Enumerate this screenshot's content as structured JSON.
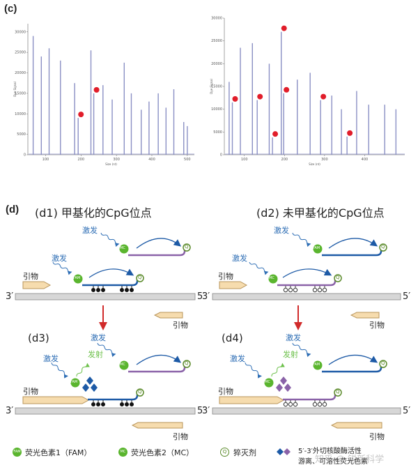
{
  "panel_c_label": "(c)",
  "panel_d_label": "(d)",
  "chart_data": [
    {
      "type": "bar",
      "title": "",
      "xlabel": "Size (nt)",
      "ylabel": "Dye Signal",
      "xlim": [
        50,
        520
      ],
      "ylim": [
        0,
        32000
      ],
      "x_ticks": [
        "100",
        "200",
        "300",
        "400",
        "500"
      ],
      "y_ticks": [
        "0",
        "5000",
        "10000",
        "15000",
        "20000",
        "25000",
        "30000"
      ],
      "peaks": [
        {
          "x": 65,
          "y": 29000
        },
        {
          "x": 88,
          "y": 24000
        },
        {
          "x": 110,
          "y": 26000
        },
        {
          "x": 142,
          "y": 23000
        },
        {
          "x": 182,
          "y": 17500
        },
        {
          "x": 192,
          "y": 9000,
          "marked": true
        },
        {
          "x": 228,
          "y": 25500
        },
        {
          "x": 236,
          "y": 15000,
          "marked": true
        },
        {
          "x": 262,
          "y": 17000
        },
        {
          "x": 288,
          "y": 13500
        },
        {
          "x": 322,
          "y": 22500
        },
        {
          "x": 342,
          "y": 15000
        },
        {
          "x": 370,
          "y": 11000
        },
        {
          "x": 392,
          "y": 13000
        },
        {
          "x": 418,
          "y": 15000
        },
        {
          "x": 440,
          "y": 11500
        },
        {
          "x": 462,
          "y": 16000
        },
        {
          "x": 490,
          "y": 8000
        },
        {
          "x": 500,
          "y": 7000
        }
      ]
    },
    {
      "type": "bar",
      "title": "",
      "xlabel": "Size (nt)",
      "ylabel": "Dye Signal",
      "xlim": [
        50,
        500
      ],
      "ylim": [
        0,
        30000
      ],
      "x_ticks": [
        "100",
        "200",
        "300",
        "400"
      ],
      "y_ticks": [
        "0",
        "5000",
        "10000",
        "15000",
        "20000",
        "25000",
        "30000"
      ],
      "peaks": [
        {
          "x": 62,
          "y": 16000
        },
        {
          "x": 70,
          "y": 11500,
          "marked": true
        },
        {
          "x": 90,
          "y": 23500
        },
        {
          "x": 120,
          "y": 24500
        },
        {
          "x": 132,
          "y": 12000,
          "marked": true
        },
        {
          "x": 162,
          "y": 20000
        },
        {
          "x": 170,
          "y": 3800,
          "marked": true
        },
        {
          "x": 192,
          "y": 27000,
          "marked": true
        },
        {
          "x": 198,
          "y": 13500,
          "marked": true
        },
        {
          "x": 232,
          "y": 16500
        },
        {
          "x": 264,
          "y": 18000
        },
        {
          "x": 290,
          "y": 12000,
          "marked": true
        },
        {
          "x": 318,
          "y": 13000
        },
        {
          "x": 342,
          "y": 10000
        },
        {
          "x": 356,
          "y": 4000,
          "marked": true
        },
        {
          "x": 380,
          "y": 14000
        },
        {
          "x": 410,
          "y": 11000
        },
        {
          "x": 450,
          "y": 11000
        },
        {
          "x": 478,
          "y": 10000
        }
      ]
    }
  ],
  "d": {
    "d1_title": "(d1) 甲基化的CpG位点",
    "d2_title": "(d2) 未甲基化的CpG位点",
    "d3_label": "(d3)",
    "d4_label": "(d4)",
    "excite": "激发",
    "emit": "发射",
    "primer": "引物",
    "fam": "FAM",
    "mc": "MC",
    "q": "Q",
    "three_prime": "3′",
    "five_prime": "5′"
  },
  "legend": {
    "fam_text": "荧光色素1（FAM）",
    "mc_text": "荧光色素2（MC）",
    "q_text": "猝灭剂",
    "cleave_text_1": "5′-3′外切核酸酶活性",
    "cleave_text_2": "游离、可溶性荧光色素",
    "fam_badge": "FAM",
    "mc_badge": "MC",
    "q_badge": "Q"
  },
  "watermark": "知乎 @ 锐新科学",
  "colors": {
    "peak": "#8a8fc4",
    "red_dot": "#e11d2a",
    "fam_green": "#5ab52e",
    "excite_blue": "#2e6eb5",
    "emit_green": "#6cc04a",
    "probe_blue": "#1d5aa6",
    "probe_purple": "#8a62a8",
    "arrow_red": "#d12a2a",
    "primer_fill": "#f6dcae",
    "dna_bar": "#d7d7d7"
  }
}
